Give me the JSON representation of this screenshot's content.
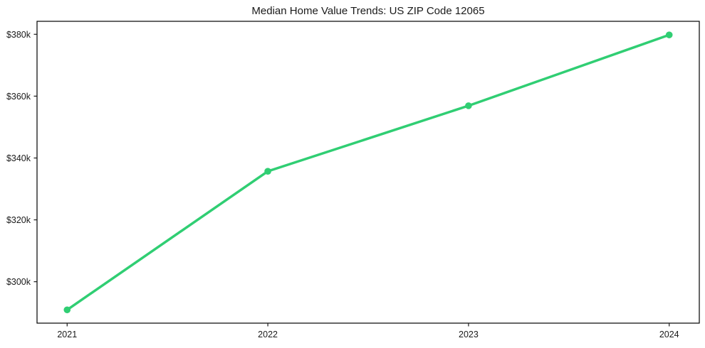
{
  "title": "Median Home Value Trends: US ZIP Code 12065",
  "chart_data": {
    "type": "line",
    "title": "Median Home Value Trends: US ZIP Code 12065",
    "x": [
      2021,
      2022,
      2023,
      2024
    ],
    "x_tick_labels": [
      "2021",
      "2022",
      "2023",
      "2024"
    ],
    "series": [
      {
        "name": "Median Home Value",
        "values": [
          290900,
          335700,
          356900,
          379800
        ]
      }
    ],
    "y_ticks": [
      300000,
      320000,
      340000,
      360000,
      380000
    ],
    "y_tick_labels": [
      "$300k",
      "$320k",
      "$340k",
      "$360k",
      "$380k"
    ],
    "xlim": [
      2020.85,
      2024.15
    ],
    "ylim": [
      286600,
      384200
    ],
    "grid": false,
    "legend": "none",
    "line_color": "#30ce73",
    "marker": "circle",
    "background_color": "#ffffff",
    "spine_color": "#000000",
    "text_color": "#1a1a1a"
  }
}
